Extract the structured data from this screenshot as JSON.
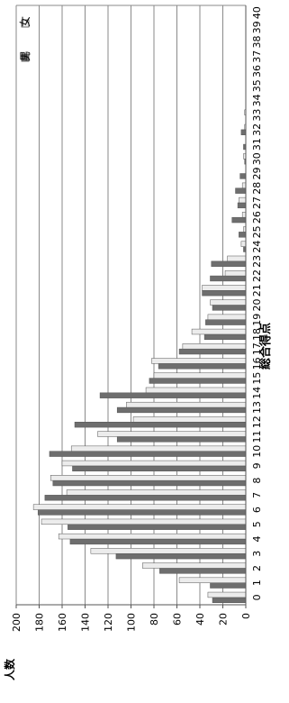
{
  "chart_data": {
    "type": "bar",
    "orientation": "vertical-bars-rotated",
    "xlabel": "総合得点",
    "ylabel": "人数",
    "ylim": [
      0,
      200
    ],
    "yticks": [
      0,
      20,
      40,
      60,
      80,
      100,
      120,
      140,
      160,
      180,
      200
    ],
    "categories": [
      "0",
      "1",
      "2",
      "3",
      "4",
      "5",
      "6",
      "7",
      "8",
      "9",
      "10",
      "11",
      "12",
      "13",
      "14",
      "15",
      "16",
      "17",
      "18",
      "19",
      "20",
      "21",
      "22",
      "23",
      "24",
      "25",
      "26",
      "27",
      "28",
      "29",
      "30",
      "31",
      "32",
      "33",
      "34",
      "35",
      "36",
      "37",
      "38",
      "39",
      "40"
    ],
    "grid": true,
    "legend_position": "top-right",
    "series": [
      {
        "name": "男",
        "color": "#6e6e6e",
        "values": [
          29,
          31,
          75,
          113,
          153,
          155,
          181,
          175,
          168,
          151,
          171,
          112,
          149,
          112,
          127,
          84,
          76,
          58,
          36,
          35,
          29,
          38,
          31,
          30,
          2,
          6,
          12,
          7,
          9,
          5,
          1,
          2,
          4,
          0,
          0,
          0,
          0,
          0,
          0,
          0,
          0
        ]
      },
      {
        "name": "女",
        "color": "#ececec",
        "values": [
          33,
          58,
          90,
          135,
          163,
          178,
          185,
          156,
          170,
          160,
          152,
          129,
          98,
          104,
          87,
          80,
          82,
          55,
          47,
          33,
          31,
          38,
          18,
          16,
          4,
          2,
          3,
          6,
          3,
          0,
          2,
          0,
          1,
          1,
          0,
          0,
          0,
          0,
          0,
          0,
          0
        ]
      }
    ]
  }
}
